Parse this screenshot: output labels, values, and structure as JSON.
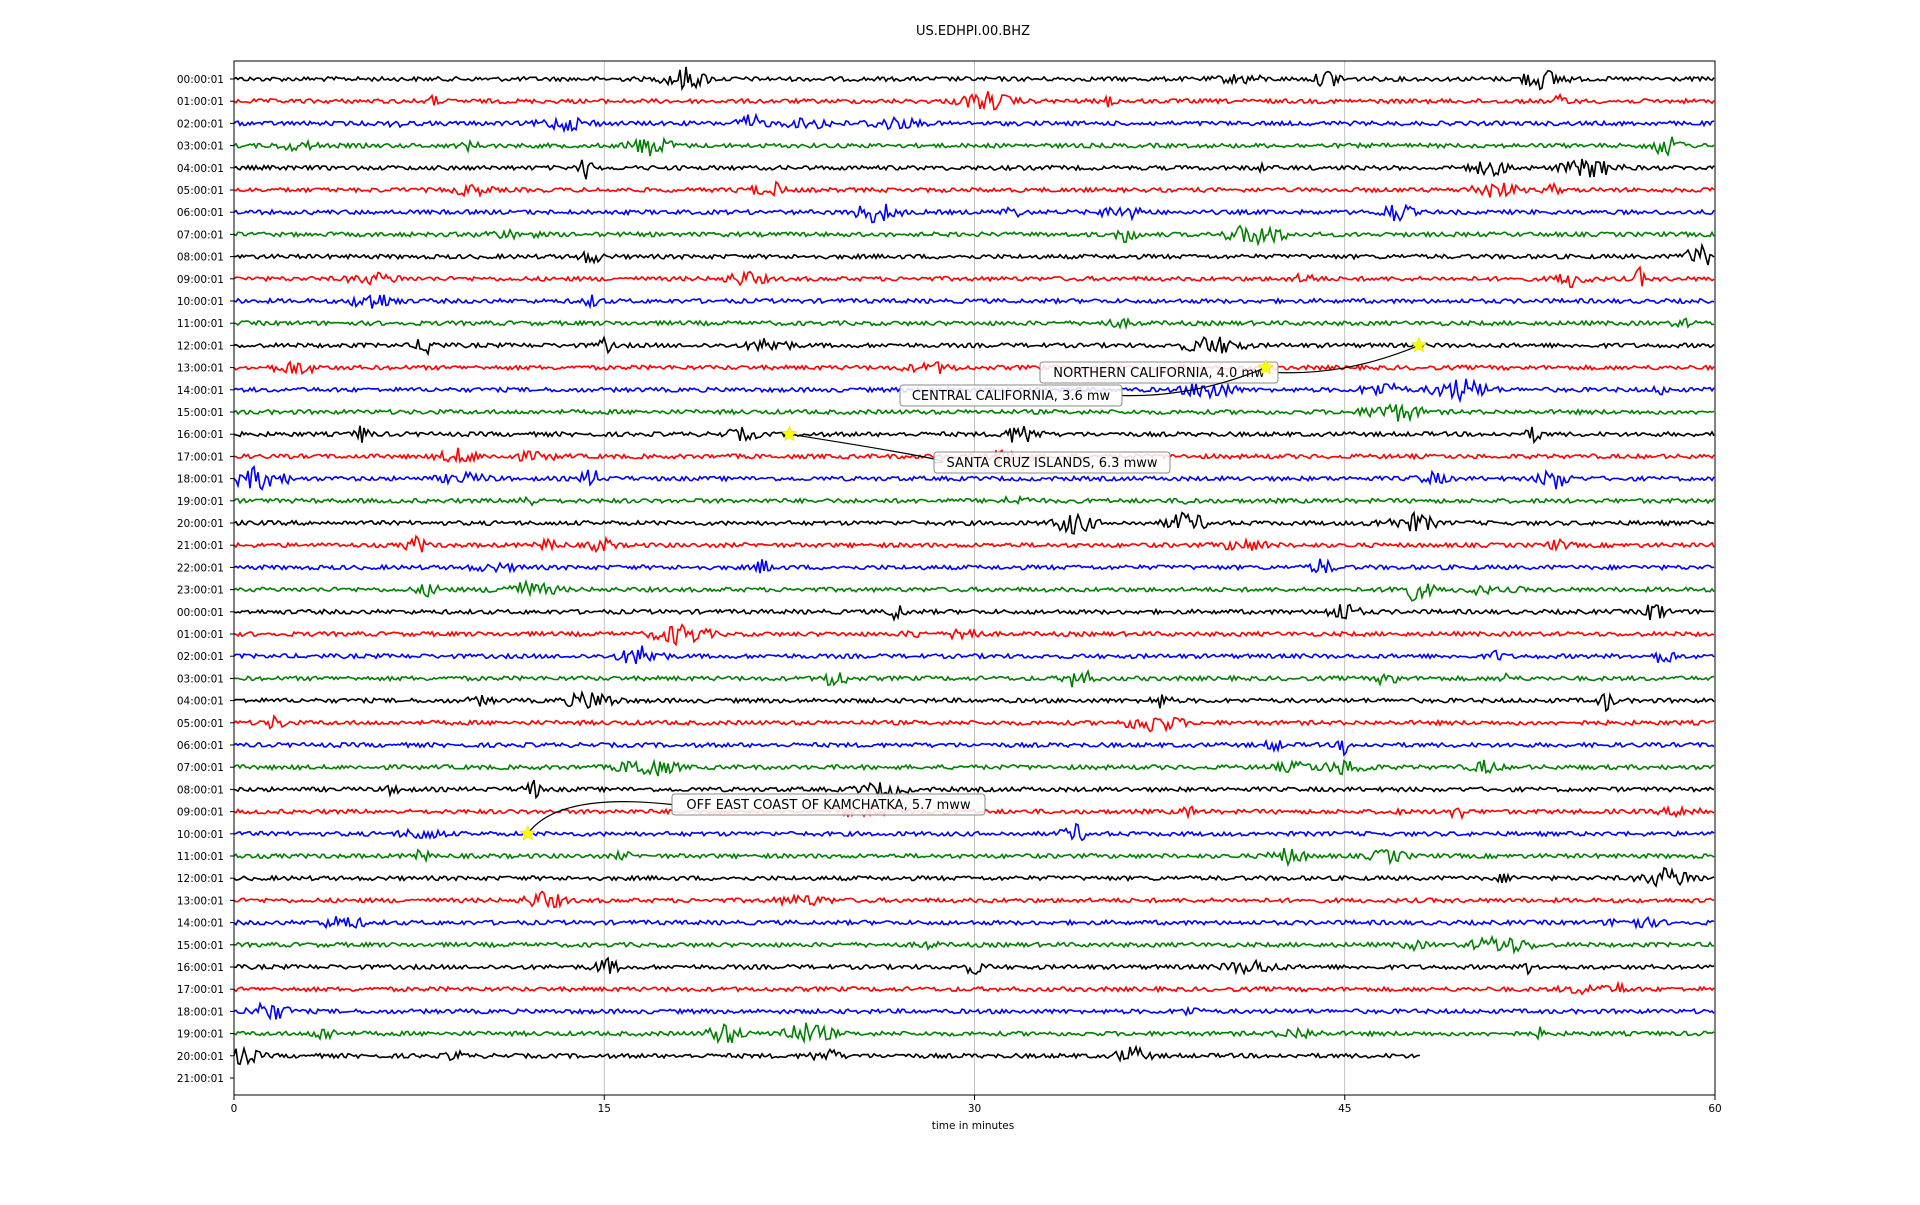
{
  "chart_data": {
    "type": "line",
    "title": "US.EDHPI.00.BHZ",
    "xlabel": "time in minutes",
    "ylabel": "",
    "xlim": [
      0,
      60
    ],
    "xticks": [
      "0",
      "15",
      "30",
      "45",
      "60"
    ],
    "grid": "vertical lines at 15, 30, 45",
    "color_cycle": [
      "#000000",
      "#ff0000",
      "#0000ff",
      "#008000"
    ],
    "row_labels": [
      "00:00:01",
      "01:00:01",
      "02:00:01",
      "03:00:01",
      "04:00:01",
      "05:00:01",
      "06:00:01",
      "07:00:01",
      "08:00:01",
      "09:00:01",
      "10:00:01",
      "11:00:01",
      "12:00:01",
      "13:00:01",
      "14:00:01",
      "15:00:01",
      "16:00:01",
      "17:00:01",
      "18:00:01",
      "19:00:01",
      "20:00:01",
      "21:00:01",
      "22:00:01",
      "23:00:01",
      "00:00:01",
      "01:00:01",
      "02:00:01",
      "03:00:01",
      "04:00:01",
      "05:00:01",
      "06:00:01",
      "07:00:01",
      "08:00:01",
      "09:00:01",
      "10:00:01",
      "11:00:01",
      "12:00:01",
      "13:00:01",
      "14:00:01",
      "15:00:01",
      "16:00:01",
      "17:00:01",
      "18:00:01",
      "19:00:01",
      "20:00:01",
      "21:00:01"
    ],
    "last_trace_end_minute": 48.1,
    "events": [
      {
        "label": "NORTHERN CALIFORNIA, 4.0 mw",
        "row": 12,
        "minute": 48.0
      },
      {
        "label": "CENTRAL CALIFORNIA, 3.6 mw",
        "row": 13,
        "minute": 41.8
      },
      {
        "label": "SANTA CRUZ ISLANDS, 6.3 mww",
        "row": 16,
        "minute": 22.5
      },
      {
        "label": "OFF EAST COAST OF KAMCHATKA, 5.7 mww",
        "row": 34,
        "minute": 11.9
      }
    ],
    "marker_color": "#ffff00"
  }
}
